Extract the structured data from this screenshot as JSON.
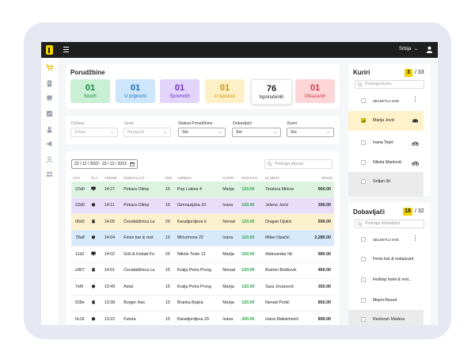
{
  "topbar": {
    "language": "Srbija",
    "language_chevron": "chevron-down-icon"
  },
  "sidebar": {
    "icons": [
      "cart-icon",
      "document-icon",
      "truck-icon",
      "chart-icon",
      "building-icon",
      "megaphone-icon",
      "user-icon",
      "group-icon"
    ]
  },
  "orders": {
    "title": "Porudžbine",
    "stats": [
      {
        "count": "01",
        "label": "Novih",
        "bg": "#c9efd4",
        "fg": "#1a8a43"
      },
      {
        "count": "01",
        "label": "U pripremi",
        "bg": "#cde6fb",
        "fg": "#1f6fb8"
      },
      {
        "count": "01",
        "label": "Spremnih",
        "bg": "#e2d4fa",
        "fg": "#7034c6"
      },
      {
        "count": "01",
        "label": "U isporuci",
        "bg": "#fdf0c6",
        "fg": "#c79400"
      },
      {
        "count": "76",
        "label": "Isporučenih",
        "bg": "#ffffff",
        "fg": "#222222"
      },
      {
        "count": "01",
        "label": "Otkazanih",
        "bg": "#fdd6d8",
        "fg": "#d43b47"
      }
    ]
  },
  "filters": [
    {
      "label": "Država",
      "value": "Srbija",
      "active": false
    },
    {
      "label": "Grad",
      "value": "Beograd",
      "active": false
    },
    {
      "label": "Statusi Porudžbine",
      "value": "Svi",
      "active": true
    },
    {
      "label": "Dobavljači",
      "value": "Svi",
      "active": true
    },
    {
      "label": "Kuriri",
      "value": "Svi",
      "active": true
    }
  ],
  "date_range": "22 / 12 / 2023 - 22 / 12 / 2023",
  "client_search": {
    "placeholder": "Pretraga klijenta"
  },
  "table": {
    "headers": [
      "VLD",
      "PLA.",
      "VREME",
      "DOBAVLJAČ",
      "MIN",
      "ADRESA",
      "KURIR",
      "DOSTAVA",
      "KLIJENT",
      "IZNOS"
    ],
    "rows": [
      {
        "id": "22d0",
        "platform": "desktop-icon",
        "time": "14:27",
        "supplier": "Pekara Olimp",
        "min": "15",
        "address": "Pop Lukina 4",
        "courier": "Marija",
        "delivery": "120.00",
        "client": "Teodora Mirkov",
        "amount": "900.00",
        "bg": "#dcf3e2"
      },
      {
        "id": "22d0",
        "platform": "apple-icon",
        "time": "14:11",
        "supplier": "Pekara Olimp",
        "min": "15",
        "address": "Gimnazijska 10",
        "courier": "Ivana",
        "delivery": "120.00",
        "client": "Jelena Jović",
        "amount": "390.00",
        "bg": "#e9def9"
      },
      {
        "id": "06d2",
        "platform": "android-icon",
        "time": "14:05",
        "supplier": "Ćevabdžinica La",
        "min": "20",
        "address": "Karadjordjeva 6",
        "courier": "Nenad",
        "delivery": "120.00",
        "client": "Dragan Djukić",
        "amount": "590.00",
        "bg": "#fcf1cf"
      },
      {
        "id": "78a8",
        "platform": "apple-icon",
        "time": "14:04",
        "supplier": "Fenix bar & rest",
        "min": "15",
        "address": "Mićurinova 22",
        "courier": "Ivana",
        "delivery": "120.00",
        "client": "Milan Opačić",
        "amount": "2,280.00",
        "bg": "#d7eafb"
      },
      {
        "id": "11d2",
        "platform": "desktop-icon",
        "time": "14:02",
        "supplier": "Grill & Kebab Fo",
        "min": "25",
        "address": "Nikole Tesle 12",
        "courier": "Marija",
        "delivery": "150.00",
        "client": "Aleksandar Ilić",
        "amount": "980.00",
        "bg": "#ffffff"
      },
      {
        "id": "e907",
        "platform": "android-icon",
        "time": "14:01",
        "supplier": "Ćevabdžinica La",
        "min": "15",
        "address": "Kralja Petra Prvog",
        "courier": "Nenad",
        "delivery": "120.00",
        "client": "Branko Bošković",
        "amount": "460.00",
        "bg": "#ffffff"
      },
      {
        "id": "7ef0",
        "platform": "apple-icon",
        "time": "13:49",
        "supplier": "Astal",
        "min": "15",
        "address": "Kralja Petra Prvog",
        "courier": "Marija",
        "delivery": "120.00",
        "client": "Sara Jovanović",
        "amount": "350.00",
        "bg": "#ffffff"
      },
      {
        "id": "628e",
        "platform": "android-icon",
        "time": "13:38",
        "supplier": "Burger Has",
        "min": "15",
        "address": "Branka Bajića",
        "courier": "Marija",
        "delivery": "120.00",
        "client": "Nenad Protić",
        "amount": "850.00",
        "bg": "#ffffff"
      },
      {
        "id": "0c19",
        "platform": "apple-icon",
        "time": "13:22",
        "supplier": "Futura",
        "min": "15",
        "address": "Karadjordjeva 20",
        "courier": "Ivana",
        "delivery": "200.00",
        "client": "Ivana Maksimović",
        "amount": "890.00",
        "bg": "#ffffff"
      }
    ]
  },
  "couriers": {
    "title": "Kuriri",
    "count": "3",
    "total": "/ 33",
    "search_placeholder": "Pretraga kurira",
    "select_all": "SELEKTUJ SVE",
    "items": [
      {
        "name": "Marija Jović",
        "checked": true,
        "vehicle": "car-icon",
        "bg": "#fdf2c9"
      },
      {
        "name": "Ivana Tepić",
        "checked": false,
        "vehicle": "bike-icon",
        "bg": "#ffffff"
      },
      {
        "name": "Nikola Marković",
        "checked": false,
        "vehicle": "bike-icon",
        "bg": "#ffffff"
      },
      {
        "name": "Srdjan Ilić",
        "checked": false,
        "vehicle": "",
        "bg": "#ebebeb"
      }
    ]
  },
  "suppliers": {
    "title": "Dobavljači",
    "count": "18",
    "total": "/ 32",
    "search_placeholder": "Pretraga dobavljača",
    "select_all": "SELEKTUJ SVE",
    "items": [
      {
        "name": "Fenix bar & restaurant",
        "bg": "#ffffff"
      },
      {
        "name": "Holiday hotel & rest...",
        "bg": "#ffffff"
      },
      {
        "name": "Miami Resort",
        "bg": "#ffffff"
      },
      {
        "name": "Restoran Madera",
        "bg": "#ebebeb"
      }
    ]
  }
}
